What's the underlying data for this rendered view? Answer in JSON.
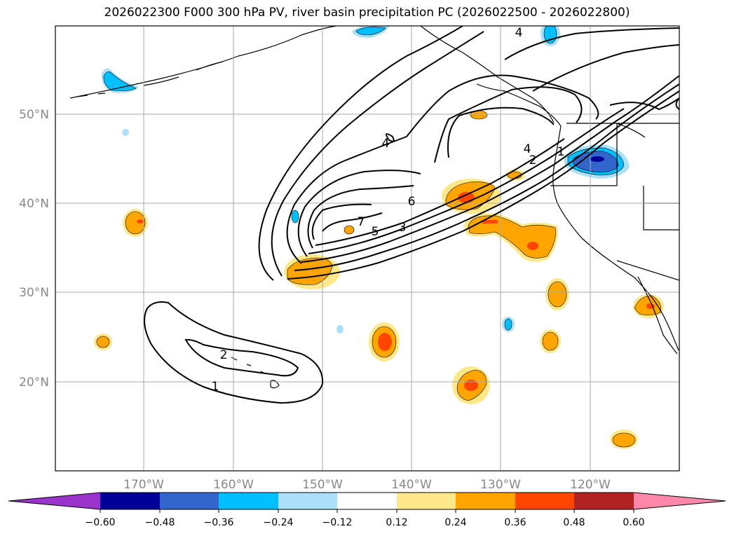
{
  "title": "2026022300 F000 300 hPa PV, river basin precipitation PC (2026022500 - 2026022800)",
  "map": {
    "lat_labels": [
      "50°N",
      "40°N",
      "30°N",
      "20°N"
    ],
    "lon_labels": [
      "170°W",
      "160°W",
      "150°W",
      "140°W",
      "130°W",
      "120°W"
    ],
    "contour_labels": [
      "4",
      "4",
      "1",
      "2",
      "4",
      "6",
      "7",
      "5",
      "3",
      "2",
      "1"
    ]
  },
  "colorbar": {
    "ticks": [
      "−0.60",
      "−0.48",
      "−0.36",
      "−0.24",
      "−0.12",
      "0.12",
      "0.24",
      "0.36",
      "0.48",
      "0.60"
    ],
    "colors": [
      "#9933cc",
      "#000099",
      "#3366cc",
      "#00bfff",
      "#aae0f8",
      "#ffffff",
      "#ffe88a",
      "#ffa500",
      "#ff4500",
      "#b22222",
      "#ff88aa"
    ]
  },
  "palette": {
    "yellow": "#ffe88a",
    "orange": "#ffa500",
    "redorange": "#ff4500",
    "cyan": "#00bfff",
    "lightblue": "#aae0f8",
    "midblue": "#3366cc",
    "navy": "#000099",
    "grid": "#aaaaaa",
    "axis_label": "#888888"
  }
}
